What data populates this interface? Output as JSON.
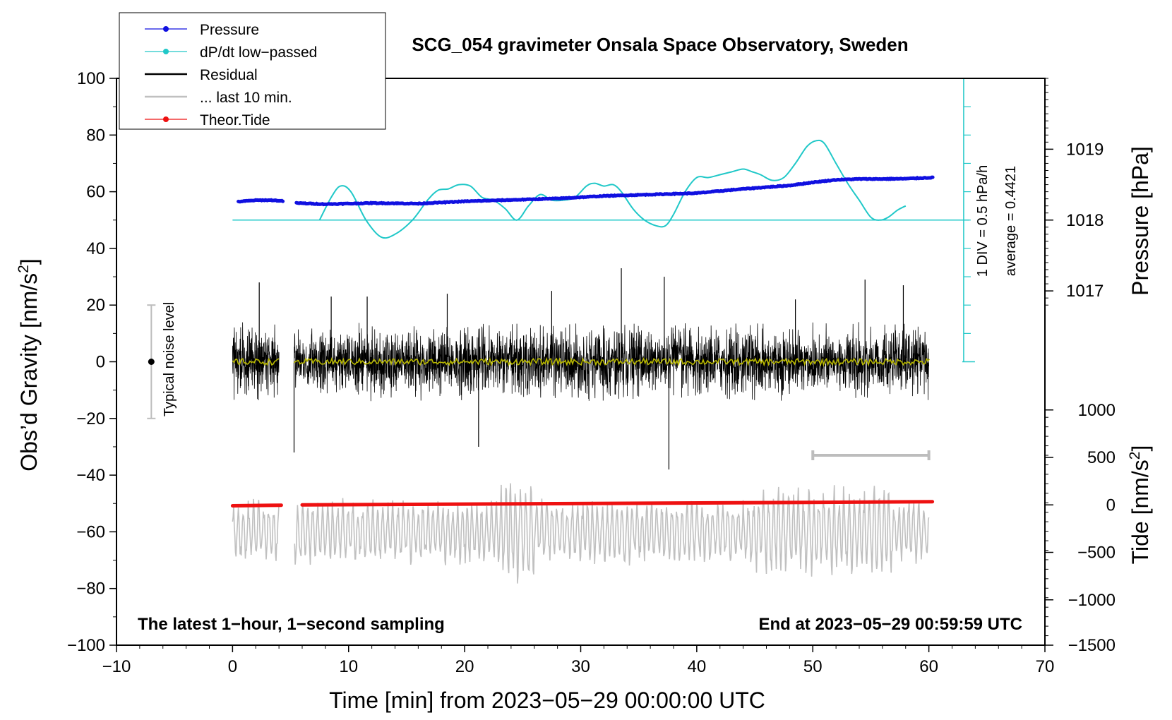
{
  "chart_data": {
    "type": "line",
    "title": "SCG_054 gravimeter Onsala Space Observatory, Sweden",
    "xlabel": "Time [min] from 2023−05−29 00:00:00 UTC",
    "ylabel_left": "Obs’d Gravity [nm/s",
    "ylabel_left_sup": "2",
    "ylabel_left_end": "]",
    "ylabel_right_top": "Pressure [hPa]",
    "ylabel_right_bottom": "Tide [nm/s",
    "ylabel_right_bottom_sup": "2",
    "ylabel_right_bottom_end": "]",
    "xlim": [
      -10,
      70
    ],
    "ylim": [
      -100,
      100
    ],
    "x_ticks": [
      -10,
      0,
      10,
      20,
      30,
      40,
      50,
      60,
      70
    ],
    "x_tick_labels": [
      "−10",
      "0",
      "10",
      "20",
      "30",
      "40",
      "50",
      "60",
      "70"
    ],
    "y_ticks": [
      100,
      80,
      60,
      40,
      20,
      0,
      -20,
      -40,
      -60,
      -80,
      -100
    ],
    "y_tick_labels": [
      "100",
      "80",
      "60",
      "40",
      "20",
      "0",
      "−20",
      "−40",
      "−60",
      "−80",
      "−100"
    ],
    "pressure_axis": {
      "ticks": [
        1019,
        1018,
        1017
      ],
      "tick_labels": [
        "1019",
        "1018",
        "1017"
      ],
      "gravity_equivalent": [
        75,
        50,
        25
      ]
    },
    "tide_axis": {
      "ticks": [
        1000,
        500,
        0,
        -500,
        -1000,
        -1500
      ],
      "tick_labels": [
        "1000",
        "500",
        "0",
        "−500",
        "−1000",
        "−1500"
      ],
      "gravity_equivalent": [
        -17,
        -33.75,
        -50.5,
        -67.25,
        -84,
        -100
      ]
    },
    "legend": [
      {
        "label": "Pressure",
        "color": "#1010e0",
        "style": "line-dot"
      },
      {
        "label": "dP/dt low−passed",
        "color": "#20c8c8",
        "style": "line-dot"
      },
      {
        "label": "Residual",
        "color": "#000000",
        "style": "line"
      },
      {
        "label": "... last 10 min.",
        "color": "#c0c0c0",
        "style": "line"
      },
      {
        "label": "Theor.Tide",
        "color": "#ee1111",
        "style": "line-dot"
      }
    ],
    "series": [
      {
        "name": "Pressure",
        "color": "#1010e0",
        "x": [
          0.5,
          2,
          3.5,
          4.3,
          5.5,
          8,
          12,
          16,
          20,
          24,
          28,
          32,
          36,
          40,
          44,
          48,
          50,
          52,
          54,
          56,
          58,
          60.3
        ],
        "y": [
          56.5,
          57,
          57,
          56.7,
          56,
          55.6,
          56,
          55.8,
          56.6,
          57.1,
          57.6,
          58.5,
          59,
          59.5,
          61,
          62.2,
          63.3,
          64.2,
          64.5,
          64.5,
          64.6,
          65
        ]
      },
      {
        "name": "dP/dt low−passed",
        "color": "#20c8c8",
        "baseline": 50,
        "x": [
          7.5,
          8.5,
          9.3,
          10.2,
          11.5,
          12.8,
          14,
          15.5,
          16.8,
          17.7,
          18.6,
          19.5,
          20.5,
          21.5,
          22.5,
          23.5,
          24.5,
          25.5,
          26.5,
          27.5,
          28.5,
          29.5,
          30.5,
          31.2,
          32,
          32.8,
          33.5,
          34.5,
          35.5,
          36.5,
          37.3,
          38,
          39,
          40,
          41,
          42,
          43,
          44,
          44.8,
          45.5,
          46.5,
          47.5,
          48.5,
          49.5,
          50.3,
          51,
          52,
          53,
          54,
          55,
          55.8,
          56.5,
          57.3,
          58
        ],
        "y": [
          50,
          58,
          62,
          60,
          50,
          44,
          45,
          50,
          57,
          60.5,
          61,
          62.5,
          62,
          58,
          57,
          54,
          50,
          55,
          59,
          57,
          57,
          58,
          62,
          63,
          62,
          62.5,
          60,
          54,
          50,
          48,
          48,
          52,
          60,
          65,
          65,
          66,
          67,
          68,
          67,
          66,
          64,
          65,
          70,
          76,
          78,
          77,
          70,
          63,
          57,
          51,
          50,
          51,
          53.5,
          55
        ]
      },
      {
        "name": "Residual",
        "color": "#000000",
        "segments": [
          [
            0,
            4
          ],
          [
            5.3,
            60
          ]
        ],
        "envelope": 14,
        "spikes": [
          {
            "x": 2.3,
            "y": 28
          },
          {
            "x": 5.3,
            "y": -32
          },
          {
            "x": 8.5,
            "y": 23
          },
          {
            "x": 11.6,
            "y": 23
          },
          {
            "x": 18.5,
            "y": 24
          },
          {
            "x": 21.2,
            "y": -30
          },
          {
            "x": 27.5,
            "y": 25
          },
          {
            "x": 33.5,
            "y": 33
          },
          {
            "x": 37.2,
            "y": 30
          },
          {
            "x": 37.6,
            "y": -38
          },
          {
            "x": 48.5,
            "y": 22
          },
          {
            "x": 54.5,
            "y": 29
          },
          {
            "x": 57.8,
            "y": 27
          }
        ]
      },
      {
        "name": "Residual smoothed",
        "color": "#b8b800",
        "y_level": 0
      },
      {
        "name": "... last 10 min.",
        "color": "#c0c0c0",
        "offset": -60,
        "envelope": 12
      },
      {
        "name": "Theor.Tide",
        "color": "#ee1111",
        "x": [
          0,
          4.2,
          6,
          20,
          35,
          50,
          60.3
        ],
        "y": [
          -50.8,
          -50.6,
          -50.5,
          -50.1,
          -49.8,
          -49.6,
          -49.4
        ]
      }
    ],
    "noise_level": {
      "label": "Typical noise level",
      "x": -7,
      "center": 0,
      "range": [
        -20,
        20
      ]
    },
    "last10_bar": {
      "x_start": 50,
      "x_end": 60,
      "y": -33
    },
    "pressure_scale": {
      "x": 63,
      "y_bottom": 0,
      "y_top": 100,
      "baseline": 50,
      "label1": "1 DIV = 0.5 hPa/h",
      "label2": "average = 0.4421"
    },
    "note_left": "The latest 1−hour, 1−second sampling",
    "note_right": "End at 2023−05−29 00:59:59 UTC"
  }
}
